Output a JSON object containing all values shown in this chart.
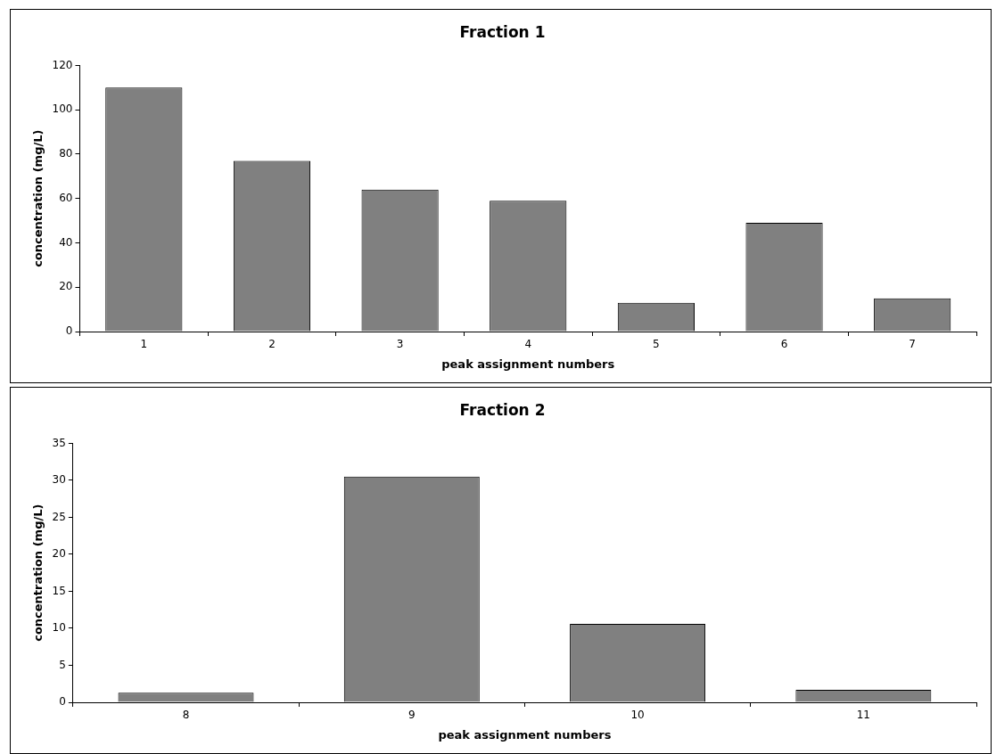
{
  "chart_data": [
    {
      "type": "bar",
      "title": "Fraction 1",
      "xlabel": "peak assignment numbers",
      "ylabel": "concentration (mg/L)",
      "categories": [
        "1",
        "2",
        "3",
        "4",
        "5",
        "6",
        "7"
      ],
      "values": [
        110,
        77,
        64,
        59,
        13,
        49,
        15
      ],
      "color": "#808080",
      "ylim": [
        0,
        120
      ],
      "yticks": [
        0,
        20,
        40,
        60,
        80,
        100,
        120
      ],
      "grid": false,
      "legend": false
    },
    {
      "type": "bar",
      "title": "Fraction 2",
      "xlabel": "peak assignment numbers",
      "ylabel": "concentration (mg/L)",
      "categories": [
        "8",
        "9",
        "10",
        "11"
      ],
      "values": [
        1.3,
        30.5,
        10.6,
        1.7
      ],
      "color": "#808080",
      "ylim": [
        0,
        35
      ],
      "yticks": [
        0,
        5,
        10,
        15,
        20,
        25,
        30,
        35
      ],
      "grid": false,
      "legend": false
    }
  ]
}
